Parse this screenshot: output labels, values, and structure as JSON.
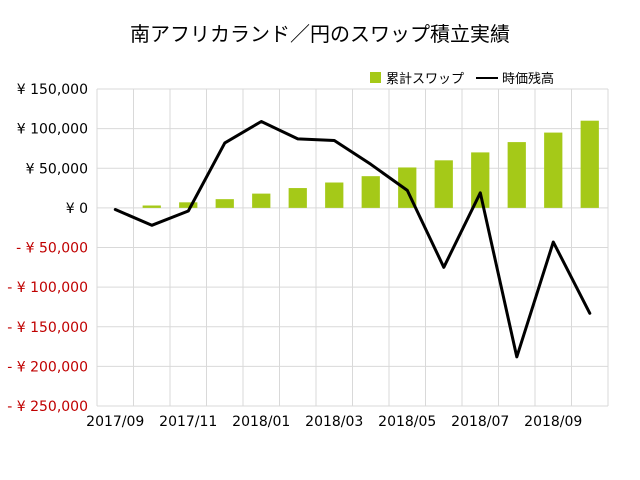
{
  "chart_data": {
    "type": "bar+line",
    "title": "南アフリカランド／円のスワップ積立実績",
    "categories": [
      "2017/09",
      "2017/10",
      "2017/11",
      "2017/12",
      "2018/01",
      "2018/02",
      "2018/03",
      "2018/04",
      "2018/05",
      "2018/06",
      "2018/07",
      "2018/08",
      "2018/09",
      "2018/10"
    ],
    "x_tick_labels": [
      "2017/09",
      "2017/11",
      "2018/01",
      "2018/03",
      "2018/05",
      "2018/07",
      "2018/09"
    ],
    "y_tick_labels": [
      "¥ 150,000",
      "¥ 100,000",
      "¥ 50,000",
      "¥ 0",
      "- ¥ 50,000",
      "- ¥ 100,000",
      "- ¥ 150,000",
      "- ¥ 200,000",
      "- ¥ 250,000"
    ],
    "y_tick_values": [
      150000,
      100000,
      50000,
      0,
      -50000,
      -100000,
      -150000,
      -200000,
      -250000
    ],
    "ylim": [
      -250000,
      150000
    ],
    "grid": true,
    "legend_position": "top-right",
    "series": [
      {
        "name": "累計スワップ",
        "type": "bar",
        "color": "#a5c918",
        "values": [
          0,
          3000,
          7000,
          11000,
          18000,
          25000,
          32000,
          40000,
          51000,
          60000,
          70000,
          83000,
          95000,
          110000
        ]
      },
      {
        "name": "時価残高",
        "type": "line",
        "color": "#000000",
        "values": [
          -2000,
          -22000,
          -4000,
          82000,
          109000,
          87000,
          85000,
          55000,
          22000,
          -75000,
          19000,
          -188000,
          -43000,
          -133000
        ]
      }
    ],
    "negative_tick_color": "#c00000"
  }
}
